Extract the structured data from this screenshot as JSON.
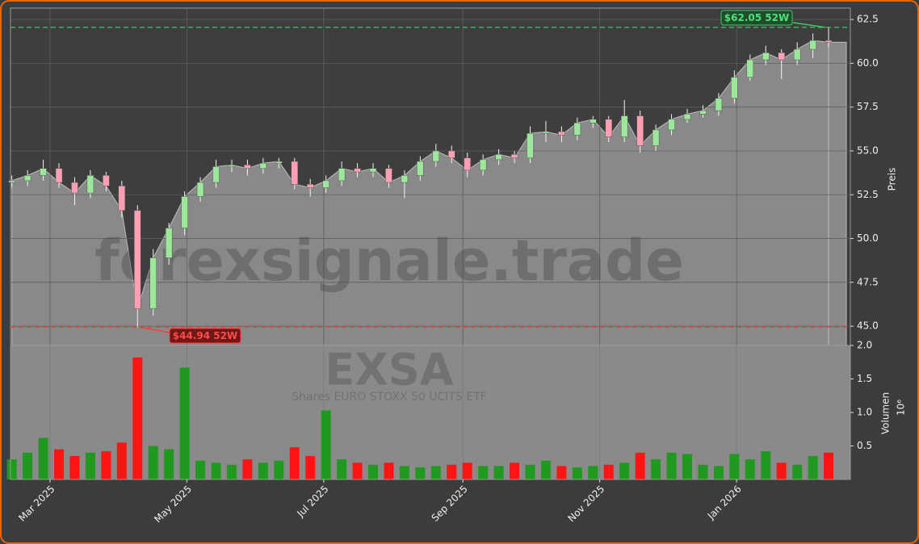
{
  "chart_data": {
    "type": "candlestick",
    "watermark": "forexsignale.trade",
    "symbol": "EXSA",
    "name": "Shares EURO STOXX 50 UCITS ETF",
    "ylabel": "Preis",
    "x": [
      42,
      49,
      56,
      63,
      70,
      77,
      84,
      91,
      98,
      105,
      112,
      119,
      126,
      133,
      140,
      147,
      154,
      161,
      168,
      175,
      182,
      189,
      196,
      203,
      210,
      217,
      224,
      231,
      238,
      245,
      252,
      259,
      266,
      273,
      280,
      287,
      294,
      301,
      308,
      315,
      322,
      329,
      336,
      343,
      350,
      357,
      364,
      371,
      378,
      385,
      392,
      399,
      406
    ],
    "open": [
      53.2,
      53.3,
      53.6,
      54.0,
      53.2,
      52.6,
      53.6,
      53.0,
      51.6,
      46.0,
      48.9,
      50.6,
      52.4,
      53.2,
      54.1,
      54.2,
      54.0,
      54.3,
      54.4,
      53.1,
      52.9,
      53.3,
      54.0,
      53.8,
      54.0,
      53.2,
      53.6,
      54.4,
      55.0,
      54.6,
      53.9,
      54.5,
      54.8,
      54.6,
      56.0,
      56.1,
      55.9,
      56.6,
      56.8,
      55.8,
      57.0,
      55.3,
      56.2,
      56.8,
      57.1,
      57.3,
      58.0,
      59.2,
      60.2,
      60.6,
      60.2,
      60.8,
      61.3
    ],
    "high": [
      53.6,
      53.9,
      54.5,
      54.3,
      53.5,
      53.9,
      53.8,
      53.3,
      51.9,
      49.4,
      50.9,
      52.7,
      53.5,
      54.5,
      54.5,
      54.5,
      54.6,
      54.6,
      54.6,
      53.4,
      53.6,
      54.4,
      54.3,
      54.3,
      54.2,
      53.9,
      54.7,
      55.4,
      55.3,
      54.9,
      54.8,
      55.1,
      55.0,
      56.4,
      56.7,
      56.4,
      56.9,
      57.0,
      57.0,
      57.9,
      57.3,
      56.5,
      57.1,
      57.4,
      57.6,
      58.3,
      59.6,
      60.5,
      61.0,
      60.8,
      61.2,
      61.7,
      62.05
    ],
    "low": [
      52.9,
      53.0,
      53.3,
      52.9,
      51.9,
      52.3,
      52.7,
      51.2,
      44.94,
      45.6,
      48.5,
      50.2,
      52.1,
      52.9,
      53.8,
      53.6,
      53.7,
      54.0,
      52.8,
      52.4,
      52.6,
      53.0,
      53.5,
      53.5,
      52.9,
      52.3,
      53.3,
      54.1,
      54.3,
      53.5,
      53.6,
      54.2,
      54.3,
      54.3,
      55.5,
      55.5,
      55.6,
      56.3,
      55.5,
      55.5,
      54.9,
      55.0,
      55.9,
      56.6,
      56.9,
      57.0,
      57.7,
      59.0,
      59.9,
      59.1,
      59.9,
      60.3,
      60.9
    ],
    "close": [
      53.3,
      53.6,
      54.0,
      53.2,
      52.6,
      53.6,
      53.0,
      51.6,
      46.0,
      48.9,
      50.6,
      52.4,
      53.2,
      54.1,
      54.2,
      54.0,
      54.3,
      54.4,
      53.1,
      52.9,
      53.3,
      54.0,
      53.8,
      54.0,
      53.2,
      53.6,
      54.4,
      55.0,
      54.6,
      53.9,
      54.5,
      54.8,
      54.6,
      56.0,
      56.1,
      55.9,
      56.6,
      56.8,
      55.8,
      57.0,
      55.3,
      56.2,
      56.8,
      57.1,
      57.3,
      58.0,
      59.2,
      60.2,
      60.6,
      60.2,
      60.8,
      61.3,
      61.2
    ],
    "up_color": "#9be89b",
    "down_color": "#ff9fb4",
    "area_color": "#898989",
    "ylim": [
      43.9,
      63.15
    ],
    "yticks": [
      {
        "value": 45,
        "label": "45.0"
      },
      47.5,
      {
        "value": 50,
        "label": "50.0"
      },
      52.5,
      {
        "value": 55,
        "label": "55.0"
      },
      57.5,
      {
        "value": 60,
        "label": "60.0"
      },
      62.5
    ],
    "xlim": [
      41.4,
      415.7
    ],
    "xticks": [
      {
        "value": 59,
        "label": "Mar 2025"
      },
      {
        "value": 120,
        "label": "May 2025"
      },
      {
        "value": 181,
        "label": "Jul 2025"
      },
      {
        "value": 243,
        "label": "Sep 2025"
      },
      {
        "value": 304,
        "label": "Nov 2025"
      },
      {
        "value": 365,
        "label": "Jan 2026"
      }
    ],
    "grid": true,
    "high_line": {
      "value": 62.05,
      "label": "$62.05 52W",
      "color": "#3cc864"
    },
    "low_line": {
      "value": 44.94,
      "label": "$44.94 52W",
      "color": "#ff3b3b"
    },
    "volume": {
      "label": "Volumen",
      "scale": "10⁶",
      "up_color": "#1f9a1f",
      "down_color": "#ff1414",
      "values": [
        0.3,
        0.4,
        0.62,
        0.45,
        0.35,
        0.4,
        0.42,
        0.55,
        1.82,
        0.5,
        0.45,
        1.67,
        0.28,
        0.25,
        0.22,
        0.3,
        0.25,
        0.28,
        0.48,
        0.35,
        1.03,
        0.3,
        0.25,
        0.22,
        0.25,
        0.2,
        0.18,
        0.2,
        0.22,
        0.25,
        0.2,
        0.2,
        0.25,
        0.22,
        0.28,
        0.2,
        0.18,
        0.2,
        0.22,
        0.25,
        0.4,
        0.3,
        0.4,
        0.38,
        0.22,
        0.2,
        0.38,
        0.3,
        0.42,
        0.25,
        0.22,
        0.35,
        0.4
      ],
      "ylim": [
        0,
        2.0
      ],
      "yticks": [
        0.5,
        {
          "value": 1,
          "label": "1.0"
        },
        1.5,
        {
          "value": 2,
          "label": "2.0"
        }
      ]
    }
  }
}
